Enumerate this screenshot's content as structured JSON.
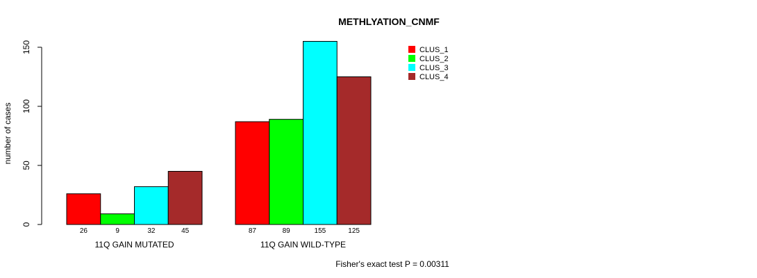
{
  "chart_data": {
    "type": "bar",
    "title": "METHLYATION_CNMF",
    "xlabel": "",
    "ylabel": "number of cases",
    "categories": [
      "11Q GAIN MUTATED",
      "11Q GAIN WILD-TYPE"
    ],
    "series": [
      {
        "name": "CLUS_1",
        "color": "#ff0000",
        "values": [
          26,
          87
        ]
      },
      {
        "name": "CLUS_2",
        "color": "#00ff00",
        "values": [
          9,
          89
        ]
      },
      {
        "name": "CLUS_3",
        "color": "#00ffff",
        "values": [
          32,
          155
        ]
      },
      {
        "name": "CLUS_4",
        "color": "#a52a2a",
        "values": [
          45,
          125
        ]
      }
    ],
    "ylim": [
      0,
      155
    ],
    "yticks": [
      0,
      50,
      100,
      150
    ],
    "legend_position": "top-right",
    "grid": false,
    "footnote": "Fisher's exact test P = 0.00311"
  }
}
